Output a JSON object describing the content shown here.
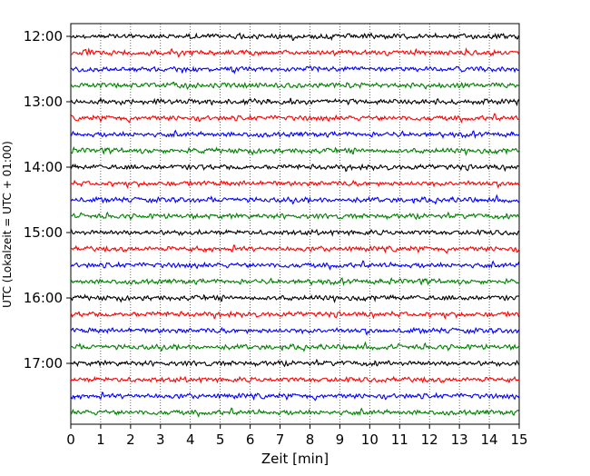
{
  "chart_data": {
    "type": "line",
    "title": "",
    "xlabel": "Zeit  [min]",
    "ylabel": "UTC (Lokalzeit = UTC + 01:00)",
    "xlim": [
      0,
      15
    ],
    "x_ticks": [
      "0",
      "1",
      "2",
      "3",
      "4",
      "5",
      "6",
      "7",
      "8",
      "9",
      "10",
      "11",
      "12",
      "13",
      "14",
      "15"
    ],
    "y_ticks": [
      "12:00",
      "13:00",
      "14:00",
      "15:00",
      "16:00",
      "17:00"
    ],
    "trace_start_times": [
      "12:00",
      "12:15",
      "12:30",
      "12:45",
      "13:00",
      "13:15",
      "13:30",
      "13:45",
      "14:00",
      "14:15",
      "14:30",
      "14:45",
      "15:00",
      "15:15",
      "15:30",
      "15:45",
      "16:00",
      "16:15",
      "16:30",
      "16:45",
      "17:00",
      "17:15",
      "17:30",
      "17:45"
    ],
    "trace_duration_min": 15,
    "trace_colors": [
      "#000000",
      "#ff0000",
      "#0000ff",
      "#008000"
    ],
    "vertical_grid": "dotted"
  }
}
